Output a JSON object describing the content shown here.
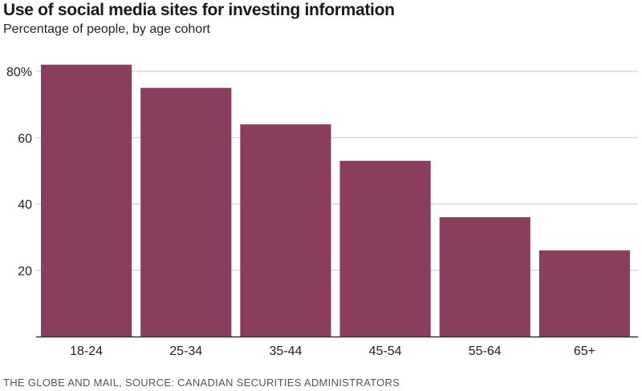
{
  "chart_data": {
    "type": "bar",
    "title": "Use of social media sites for investing information",
    "subtitle": "Percentage of people, by age cohort",
    "categories": [
      "18-24",
      "25-34",
      "35-44",
      "45-54",
      "55-64",
      "65+"
    ],
    "values": [
      82,
      75,
      64,
      53,
      36,
      26
    ],
    "ylim": [
      0,
      80
    ],
    "yticks": [
      20,
      40,
      60,
      80
    ],
    "ytick_labels": [
      "20",
      "40",
      "60",
      "80%"
    ],
    "grid": true,
    "bar_color": "#8b3d5e",
    "source": "THE GLOBE AND MAIL, SOURCE: CANADIAN SECURITIES ADMINISTRATORS"
  }
}
